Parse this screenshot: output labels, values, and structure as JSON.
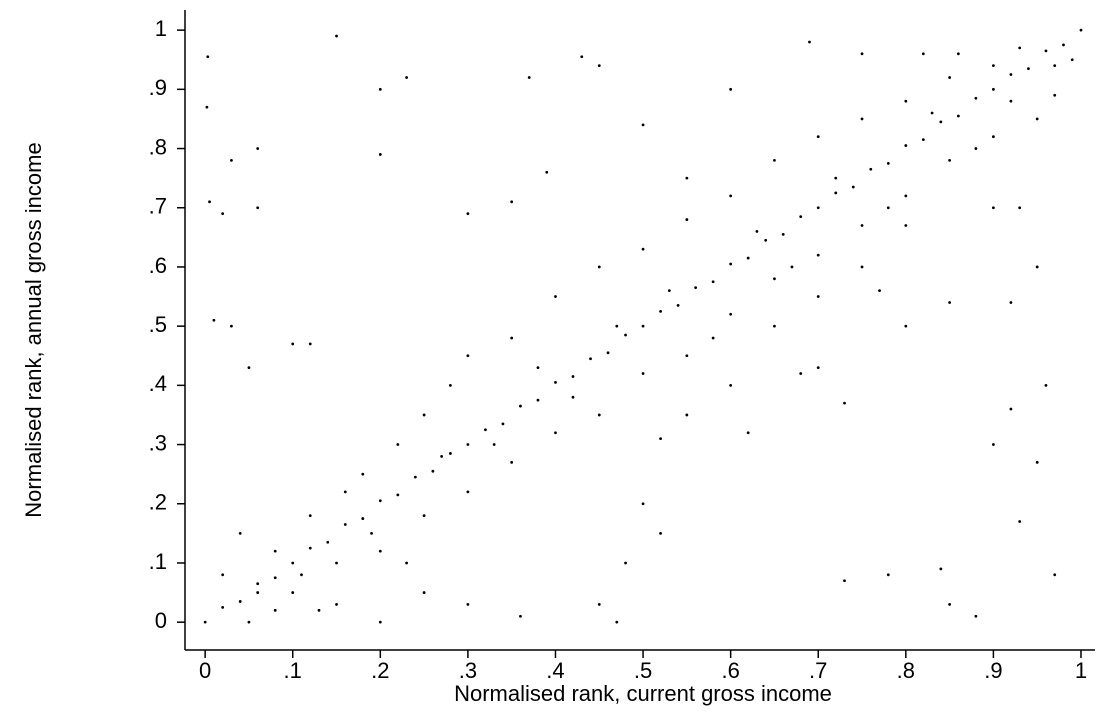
{
  "chart_data": {
    "type": "scatter",
    "x_label": "Normalised rank, current gross income",
    "y_label": "Normalised rank, annual gross income",
    "color": "#000000",
    "xlim": [
      -0.023,
      1.016
    ],
    "ylim": [
      -0.047,
      1.034
    ],
    "xticks": [
      0,
      {
        "value": 0.1,
        "label": ".1"
      },
      {
        "value": 0.2,
        "label": ".2"
      },
      {
        "value": 0.3,
        "label": ".3"
      },
      {
        "value": 0.4,
        "label": ".4"
      },
      {
        "value": 0.5,
        "label": ".5"
      },
      {
        "value": 0.6,
        "label": ".6"
      },
      {
        "value": 0.7,
        "label": ".7"
      },
      {
        "value": 0.8,
        "label": ".8"
      },
      {
        "value": 0.9,
        "label": ".9"
      },
      1
    ],
    "yticks": [
      0,
      {
        "value": 0.1,
        "label": ".1"
      },
      {
        "value": 0.2,
        "label": ".2"
      },
      {
        "value": 0.3,
        "label": ".3"
      },
      {
        "value": 0.4,
        "label": ".4"
      },
      {
        "value": 0.5,
        "label": ".5"
      },
      {
        "value": 0.6,
        "label": ".6"
      },
      {
        "value": 0.7,
        "label": ".7"
      },
      {
        "value": 0.8,
        "label": ".8"
      },
      {
        "value": 0.9,
        "label": ".9"
      },
      1
    ],
    "x": [
      0,
      0.02,
      0.04,
      0.06,
      0.08,
      0.1,
      0.12,
      0.14,
      0.16,
      0.18,
      0.2,
      0.22,
      0.24,
      0.26,
      0.28,
      0.3,
      0.32,
      0.34,
      0.36,
      0.38,
      0.4,
      0.42,
      0.44,
      0.46,
      0.48,
      0.5,
      0.52,
      0.54,
      0.56,
      0.58,
      0.6,
      0.62,
      0.64,
      0.66,
      0.68,
      0.7,
      0.72,
      0.74,
      0.76,
      0.78,
      0.8,
      0.82,
      0.84,
      0.86,
      0.88,
      0.9,
      0.92,
      0.94,
      0.96,
      0.98,
      1,
      0.003,
      0.002,
      0.15,
      0.37,
      0.43,
      0.69,
      0.92,
      0.97,
      0.45,
      0.23,
      0.2,
      0.06,
      0.03,
      0.005,
      0.02,
      0.06,
      0.01,
      0.03,
      0.05,
      0.1,
      0.12,
      0.2,
      0.3,
      0.35,
      0.39,
      0.5,
      0.55,
      0.6,
      0.75,
      0.82,
      0.86,
      0.9,
      0.93,
      0.95,
      0.92,
      0.96,
      0.95,
      0.9,
      0.92,
      0.93,
      0.97,
      0.88,
      0.85,
      0.84,
      0.78,
      0.73,
      0.7,
      0.68,
      0.73,
      0.8,
      0.85,
      0.77,
      0.75,
      0.8,
      0.7,
      0.65,
      0.6,
      0.62,
      0.55,
      0.52,
      0.5,
      0.52,
      0.48,
      0.45,
      0.47,
      0.36,
      0.3,
      0.25,
      0.2,
      0.15,
      0.1,
      0.05,
      0.08,
      0.12,
      0.18,
      0.22,
      0.25,
      0.28,
      0.3,
      0.35,
      0.4,
      0.45,
      0.5,
      0.55,
      0.6,
      0.65,
      0.7,
      0.75,
      0.8,
      0.85,
      0.9,
      0.15,
      0.2,
      0.25,
      0.3,
      0.35,
      0.4,
      0.45,
      0.5,
      0.55,
      0.6,
      0.65,
      0.7,
      0.75,
      0.8,
      0.85,
      0.9,
      0.95,
      0.02,
      0.04,
      0.06,
      0.08,
      0.11,
      0.13,
      0.16,
      0.19,
      0.23,
      0.27,
      0.33,
      0.38,
      0.42,
      0.47,
      0.53,
      0.58,
      0.63,
      0.67,
      0.72,
      0.78,
      0.83,
      0.88,
      0.93,
      0.97,
      0.99
    ],
    "values": [
      0,
      0.025,
      0.035,
      0.065,
      0.075,
      0.1,
      0.125,
      0.135,
      0.165,
      0.175,
      0.205,
      0.215,
      0.245,
      0.255,
      0.285,
      0.3,
      0.325,
      0.335,
      0.365,
      0.375,
      0.405,
      0.415,
      0.445,
      0.455,
      0.485,
      0.5,
      0.525,
      0.535,
      0.565,
      0.575,
      0.605,
      0.615,
      0.645,
      0.655,
      0.685,
      0.7,
      0.725,
      0.735,
      0.765,
      0.775,
      0.805,
      0.815,
      0.845,
      0.855,
      0.885,
      0.9,
      0.925,
      0.935,
      0.965,
      0.975,
      1,
      0.955,
      0.87,
      0.99,
      0.92,
      0.955,
      0.98,
      0.88,
      0.89,
      0.94,
      0.92,
      0.9,
      0.8,
      0.78,
      0.71,
      0.69,
      0.7,
      0.51,
      0.5,
      0.43,
      0.47,
      0.47,
      0.79,
      0.69,
      0.71,
      0.76,
      0.84,
      0.75,
      0.9,
      0.96,
      0.96,
      0.96,
      0.7,
      0.7,
      0.6,
      0.54,
      0.4,
      0.27,
      0.3,
      0.36,
      0.17,
      0.08,
      0.01,
      0.03,
      0.09,
      0.08,
      0.07,
      0.43,
      0.42,
      0.37,
      0.5,
      0.54,
      0.56,
      0.6,
      0.67,
      0.55,
      0.5,
      0.4,
      0.32,
      0.35,
      0.31,
      0.2,
      0.15,
      0.1,
      0.03,
      0,
      0.01,
      0.03,
      0.05,
      0,
      0.03,
      0.05,
      0,
      0.12,
      0.18,
      0.25,
      0.3,
      0.35,
      0.4,
      0.45,
      0.48,
      0.55,
      0.6,
      0.63,
      0.68,
      0.72,
      0.78,
      0.82,
      0.85,
      0.88,
      0.92,
      0.94,
      0.1,
      0.12,
      0.18,
      0.22,
      0.27,
      0.32,
      0.35,
      0.42,
      0.45,
      0.52,
      0.58,
      0.62,
      0.67,
      0.72,
      0.78,
      0.82,
      0.85,
      0.08,
      0.15,
      0.05,
      0.02,
      0.08,
      0.02,
      0.22,
      0.15,
      0.1,
      0.28,
      0.3,
      0.43,
      0.38,
      0.5,
      0.56,
      0.48,
      0.66,
      0.6,
      0.75,
      0.7,
      0.86,
      0.8,
      0.97,
      0.94,
      0.95
    ]
  }
}
